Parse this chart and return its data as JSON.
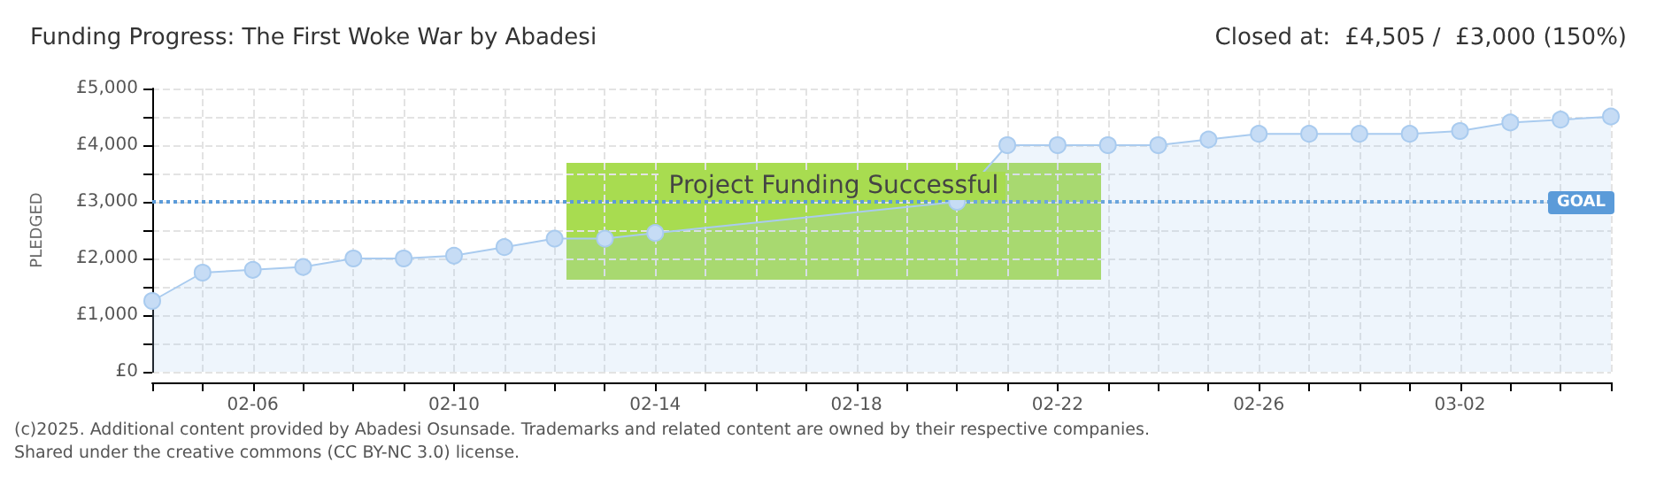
{
  "chart_data": {
    "type": "area",
    "title": "Funding Progress: The First Woke War by Abadesi",
    "subtitle": "Closed at:  £4,505 /  £3,000 (150%)",
    "ylabel": "PLEDGED",
    "categories": [
      null,
      null,
      "02-06",
      null,
      null,
      null,
      "02-10",
      null,
      null,
      null,
      "02-14",
      null,
      null,
      null,
      "02-18",
      null,
      null,
      null,
      "02-22",
      null,
      null,
      null,
      "02-26",
      null,
      null,
      null,
      "03-02",
      null,
      null,
      null
    ],
    "series": [
      {
        "color": "#a9cbef",
        "values": [
          1250,
          1750,
          1800,
          1850,
          2000,
          2000,
          2050,
          2200,
          2350,
          2350,
          2450,
          null,
          null,
          null,
          null,
          null,
          3000,
          4000,
          4000,
          4000,
          4000,
          4100,
          4200,
          4200,
          4200,
          4200,
          4250,
          4400,
          4450,
          4505
        ]
      }
    ],
    "ylim": [
      0,
      5000
    ],
    "yticks": [
      {
        "value": 0,
        "label": "£0"
      },
      {
        "value": 500,
        "label": null
      },
      {
        "value": 1000,
        "label": "£1,000"
      },
      {
        "value": 1500,
        "label": null
      },
      {
        "value": 2000,
        "label": "£2,000"
      },
      {
        "value": 2500,
        "label": null
      },
      {
        "value": 3000,
        "label": "£3,000"
      },
      {
        "value": 3500,
        "label": null
      },
      {
        "value": 4000,
        "label": "£4,000"
      },
      {
        "value": 4500,
        "label": null
      },
      {
        "value": 5000,
        "label": "£5,000"
      }
    ],
    "grid": true,
    "marker": "circle",
    "ref_lines": [
      {
        "axis": "y",
        "value": 3000,
        "label": "GOAL",
        "color": "#5b9bd9",
        "line_style": "dotted"
      }
    ],
    "annotations": [
      "Project Funding Successful",
      "(c)2025. Additional content provided by Abadesi Osunsade. Trademarks and related content are owned by their respective companies.",
      "Shared under the creative commons (CC BY-NC 3.0) license."
    ]
  }
}
